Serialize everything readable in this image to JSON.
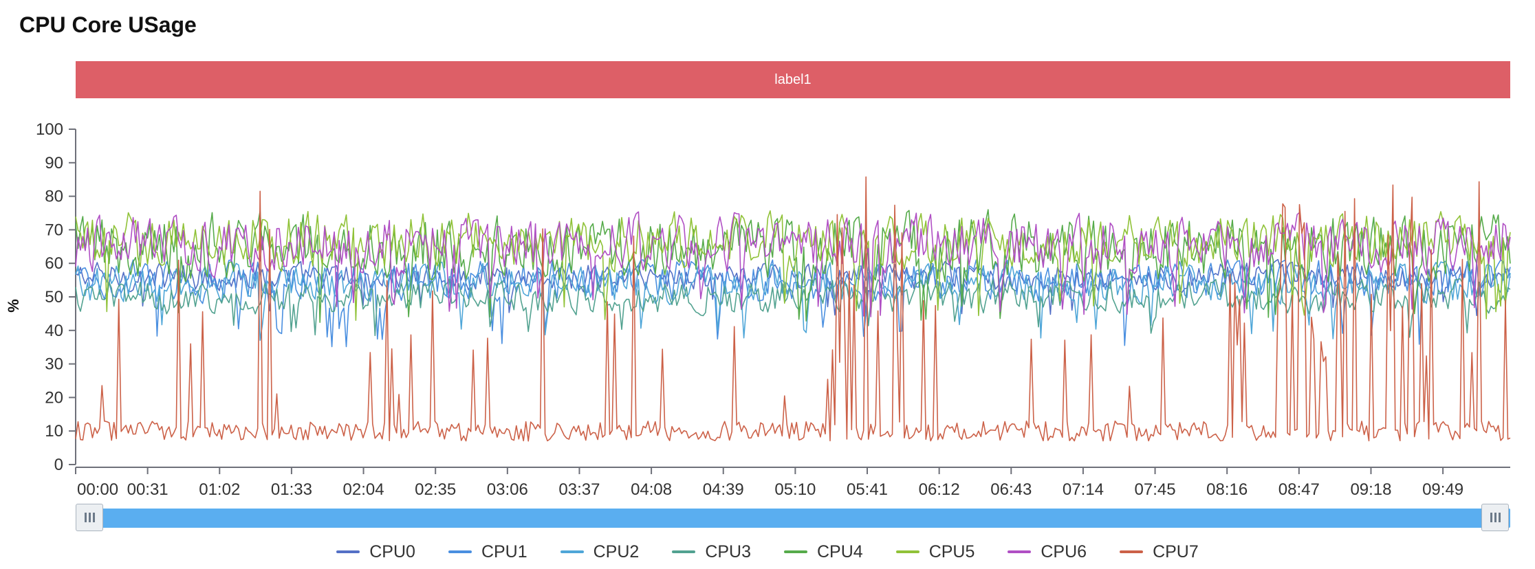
{
  "title": "CPU Core USage",
  "banner_label": "label1",
  "colors": {
    "banner": "#dd5f67",
    "slider": "#5aaef0",
    "series": [
      "#5470c6",
      "#4a8fe0",
      "#4fa6d8",
      "#52a290",
      "#56ab4b",
      "#90c238",
      "#b04fc4",
      "#cc6148"
    ]
  },
  "chart_data": {
    "type": "line",
    "title": "CPU Core USage",
    "ylabel": "%",
    "xlabel": "",
    "ylim": [
      0,
      100
    ],
    "yticks": [
      0,
      10,
      20,
      30,
      40,
      50,
      60,
      70,
      80,
      90,
      100
    ],
    "xticks": [
      "00:00",
      "00:31",
      "01:02",
      "01:33",
      "02:04",
      "02:35",
      "03:06",
      "03:37",
      "04:08",
      "04:39",
      "05:10",
      "05:41",
      "06:12",
      "06:43",
      "07:14",
      "07:45",
      "08:16",
      "08:47",
      "09:18",
      "09:49"
    ],
    "x_start_seconds": 0,
    "x_end_seconds": 618,
    "x_tick_step_seconds": 31,
    "legend_position": "bottom",
    "series": [
      {
        "name": "CPU0",
        "mean": 56,
        "min": 44,
        "max": 62
      },
      {
        "name": "CPU1",
        "mean": 55,
        "min": 35,
        "max": 61
      },
      {
        "name": "CPU2",
        "mean": 54,
        "min": 37,
        "max": 61
      },
      {
        "name": "CPU3",
        "mean": 50,
        "min": 37,
        "max": 58
      },
      {
        "name": "CPU4",
        "mean": 65,
        "min": 42,
        "max": 84
      },
      {
        "name": "CPU5",
        "mean": 67,
        "min": 43,
        "max": 78
      },
      {
        "name": "CPU6",
        "mean": 66,
        "min": 44,
        "max": 80
      },
      {
        "name": "CPU7",
        "mean": 12,
        "min": 5,
        "max": 86
      }
    ]
  }
}
